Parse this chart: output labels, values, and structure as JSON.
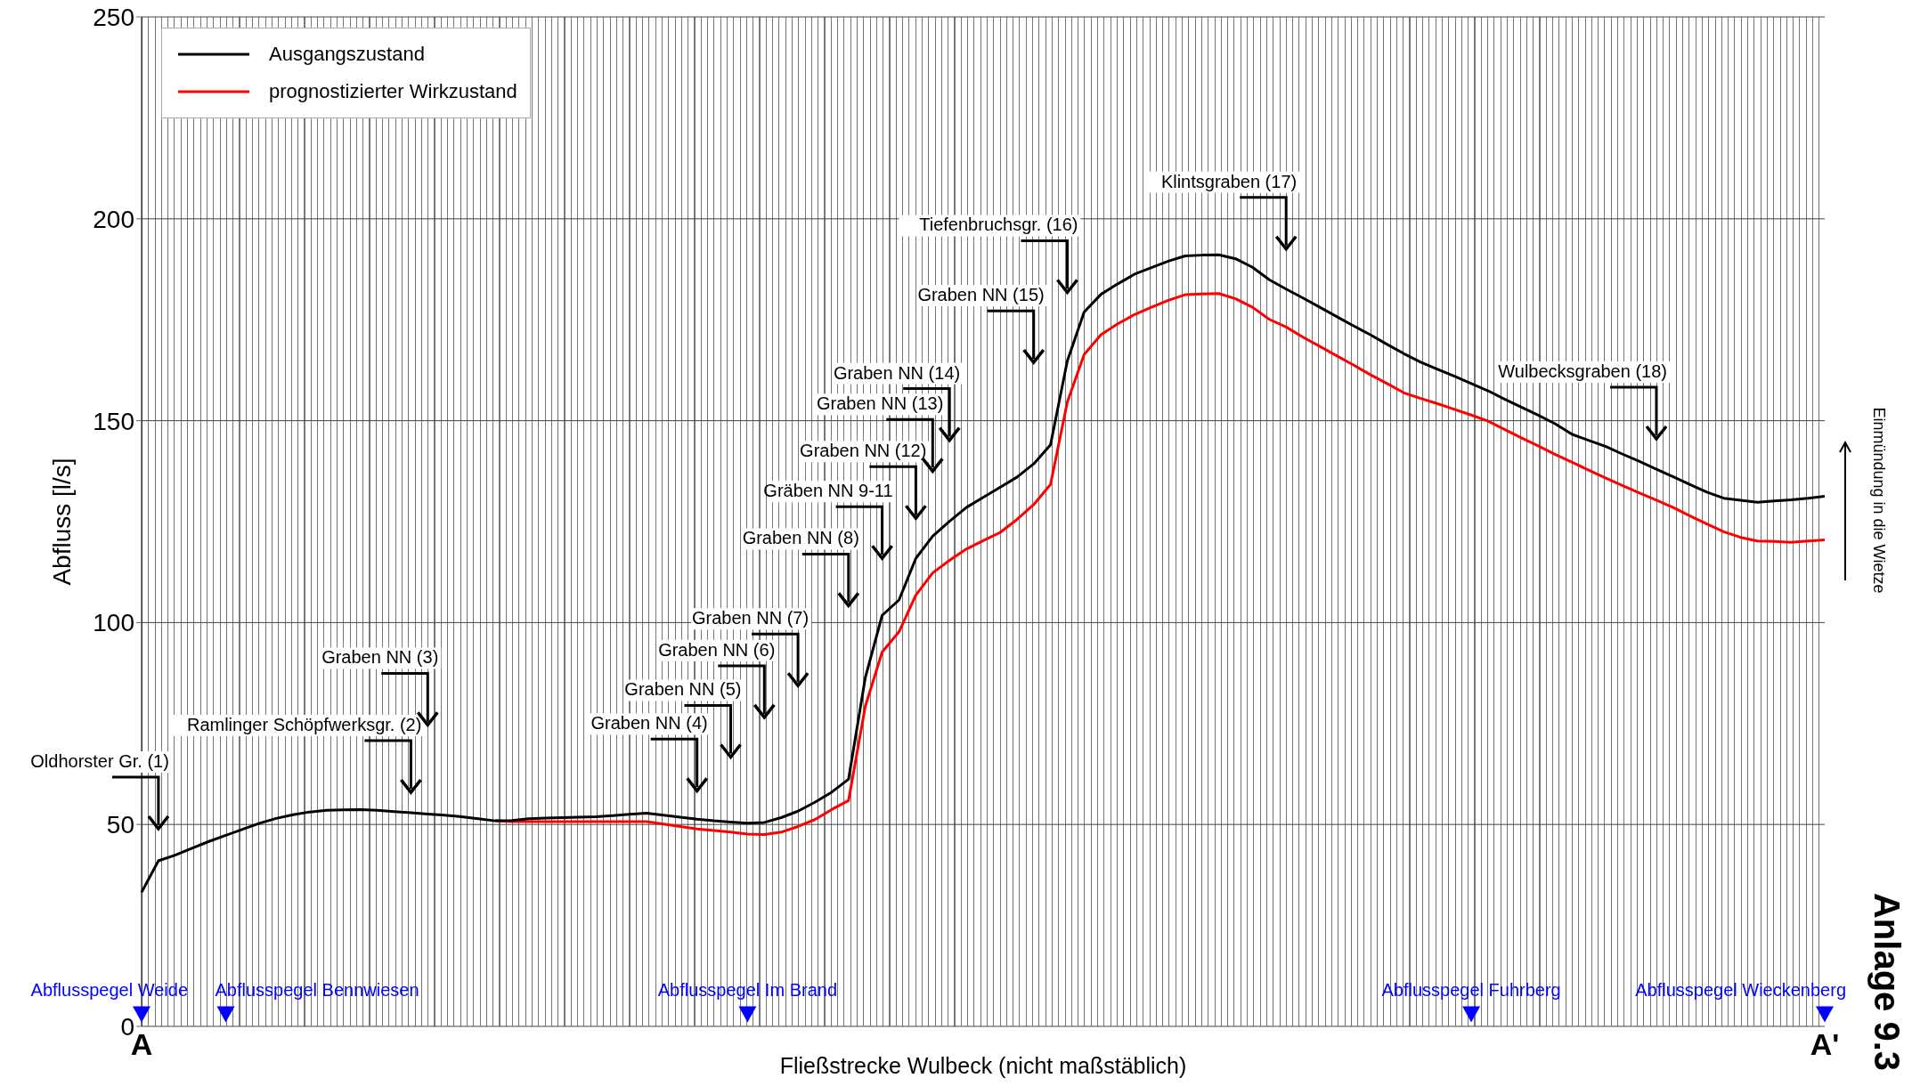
{
  "chart_data": {
    "type": "line",
    "xlabel": "Fließstrecke Wulbeck (nicht maßstäblich)",
    "ylabel": "Abfluss [l/s]",
    "categories": [
      "A",
      null,
      null,
      null,
      null,
      null,
      null,
      null,
      null,
      null,
      null,
      null,
      null,
      null,
      null,
      null,
      null,
      null,
      null,
      null,
      null,
      null,
      null,
      null,
      null,
      null,
      null,
      null,
      null,
      null,
      null,
      null,
      null,
      null,
      null,
      null,
      null,
      null,
      null,
      null,
      null,
      null,
      null,
      null,
      null,
      null,
      null,
      null,
      null,
      null,
      null,
      null,
      null,
      null,
      null,
      null,
      null,
      null,
      null,
      null,
      null,
      null,
      null,
      null,
      null,
      null,
      null,
      null,
      null,
      null,
      null,
      null,
      null,
      null,
      null,
      null,
      null,
      null,
      null,
      null,
      null,
      null,
      null,
      null,
      null,
      null,
      null,
      null,
      null,
      null,
      null,
      null,
      null,
      null,
      null,
      null,
      null,
      null,
      null,
      null,
      "A'"
    ],
    "ylim": [
      0,
      250
    ],
    "yticks": [
      0,
      50,
      100,
      150,
      200,
      250
    ],
    "grid": "y",
    "legend": "top left",
    "marker": "none",
    "line_style": "solid",
    "series": [
      {
        "name": "Ausgangszustand",
        "color": "#000000",
        "values": [
          33.2,
          41.0,
          42.4,
          44.1,
          45.8,
          47.3,
          48.8,
          50.3,
          51.5,
          52.4,
          53.1,
          53.5,
          53.6,
          53.7,
          53.5,
          53.2,
          52.9,
          52.6,
          52.3,
          51.9,
          51.4,
          50.9,
          51.0,
          51.4,
          51.6,
          51.7,
          51.8,
          51.9,
          52.2,
          52.5,
          52.8,
          52.3,
          51.8,
          51.3,
          50.9,
          50.6,
          50.3,
          50.5,
          51.7,
          53.3,
          55.5,
          58.0,
          61.2,
          86.4,
          101.8,
          105.6,
          115.9,
          121.4,
          125.1,
          128.5,
          131.0,
          133.5,
          136.0,
          139.3,
          144.0,
          164.8,
          176.9,
          181.3,
          183.9,
          186.3,
          187.9,
          189.5,
          190.8,
          191.0,
          191.1,
          190.1,
          188.0,
          184.9,
          182.6,
          180.4,
          178.1,
          175.8,
          173.5,
          171.3,
          168.9,
          166.6,
          164.5,
          162.7,
          161.0,
          159.2,
          157.4,
          155.3,
          153.3,
          151.3,
          149.2,
          146.6,
          145.1,
          143.6,
          141.7,
          139.9,
          138.0,
          136.1,
          134.2,
          132.3,
          130.8,
          130.3,
          129.8,
          130.1,
          130.4,
          130.8,
          131.3
        ]
      },
      {
        "name": "prognostizierter Wirkzustand",
        "color": "#ff0000",
        "values": [
          null,
          null,
          null,
          null,
          null,
          null,
          null,
          null,
          null,
          null,
          null,
          null,
          null,
          null,
          null,
          null,
          null,
          null,
          null,
          null,
          null,
          50.9,
          50.7,
          50.7,
          50.7,
          50.7,
          50.7,
          50.7,
          50.7,
          50.7,
          50.7,
          50.1,
          49.5,
          48.9,
          48.5,
          48.1,
          47.6,
          47.5,
          48.1,
          49.5,
          51.2,
          53.7,
          55.9,
          79.3,
          92.7,
          97.7,
          106.8,
          112.3,
          115.4,
          118.2,
          120.3,
          122.3,
          125.5,
          129.2,
          134.2,
          154.6,
          166.4,
          171.3,
          174.0,
          176.3,
          178.1,
          179.8,
          181.2,
          181.4,
          181.5,
          180.2,
          178.1,
          175.1,
          173.2,
          170.7,
          168.4,
          166.1,
          163.8,
          161.4,
          159.2,
          156.9,
          155.5,
          154.2,
          152.8,
          151.4,
          149.9,
          147.8,
          145.7,
          143.7,
          141.6,
          139.7,
          137.7,
          135.8,
          133.9,
          132.1,
          130.3,
          128.5,
          126.4,
          124.4,
          122.5,
          121.1,
          120.2,
          120.1,
          119.9,
          120.2,
          120.5
        ]
      },
      {
        "type": "scatter",
        "marker": "triangle",
        "color": "#0000ff",
        "values": [
          3,
          null,
          null,
          null,
          null,
          3,
          null,
          null,
          null,
          null,
          null,
          null,
          null,
          null,
          null,
          null,
          null,
          null,
          null,
          null,
          null,
          null,
          null,
          null,
          null,
          null,
          null,
          null,
          null,
          null,
          null,
          null,
          null,
          null,
          null,
          null,
          3,
          null,
          null,
          null,
          null,
          null,
          null,
          null,
          null,
          null,
          null,
          null,
          null,
          null,
          null,
          null,
          null,
          null,
          null,
          null,
          null,
          null,
          null,
          null,
          null,
          null,
          null,
          null,
          null,
          null,
          null,
          null,
          null,
          null,
          null,
          null,
          null,
          null,
          null,
          null,
          null,
          null,
          null,
          3,
          null,
          null,
          null,
          null,
          null,
          null,
          null,
          null,
          null,
          null,
          null,
          null,
          null,
          null,
          null,
          null,
          null,
          null,
          null,
          null,
          3
        ],
        "value_labels": [
          "Abflusspegel Weide",
          null,
          null,
          null,
          null,
          "Abflusspegel Bennwiesen",
          null,
          null,
          null,
          null,
          null,
          null,
          null,
          null,
          null,
          null,
          null,
          null,
          null,
          null,
          null,
          null,
          null,
          null,
          null,
          null,
          null,
          null,
          null,
          null,
          null,
          null,
          null,
          null,
          null,
          null,
          "Abflusspegel Im Brand",
          null,
          null,
          null,
          null,
          null,
          null,
          null,
          null,
          null,
          null,
          null,
          null,
          null,
          null,
          null,
          null,
          null,
          null,
          null,
          null,
          null,
          null,
          null,
          null,
          null,
          null,
          null,
          null,
          null,
          null,
          null,
          null,
          null,
          null,
          null,
          null,
          null,
          null,
          null,
          null,
          null,
          null,
          "Abflusspegel Fuhrberg",
          null,
          null,
          null,
          null,
          null,
          null,
          null,
          null,
          null,
          null,
          null,
          null,
          null,
          null,
          null,
          null,
          null,
          null,
          null,
          null,
          "Abflusspegel Wieckenberg"
        ]
      }
    ],
    "annotations": [
      "Oldhorster Gr. (1)",
      "Ramlinger Schöpfwerksgr. (2)",
      "Graben NN (3)",
      "Graben NN (4)",
      "Graben NN (5)",
      "Graben NN (6)",
      "Graben NN (7)",
      "Graben NN (8)",
      "Gräben NN 9-11",
      "Graben NN (12)",
      "Graben NN (13)",
      "Graben NN (14)",
      "Graben NN (15)",
      "Tiefenbruchsgr. (16)",
      "Klintsgraben (17)",
      "Wulbecksgraben (18)",
      "Einmündung in die Wietze",
      "Anlage 9.3"
    ]
  }
}
